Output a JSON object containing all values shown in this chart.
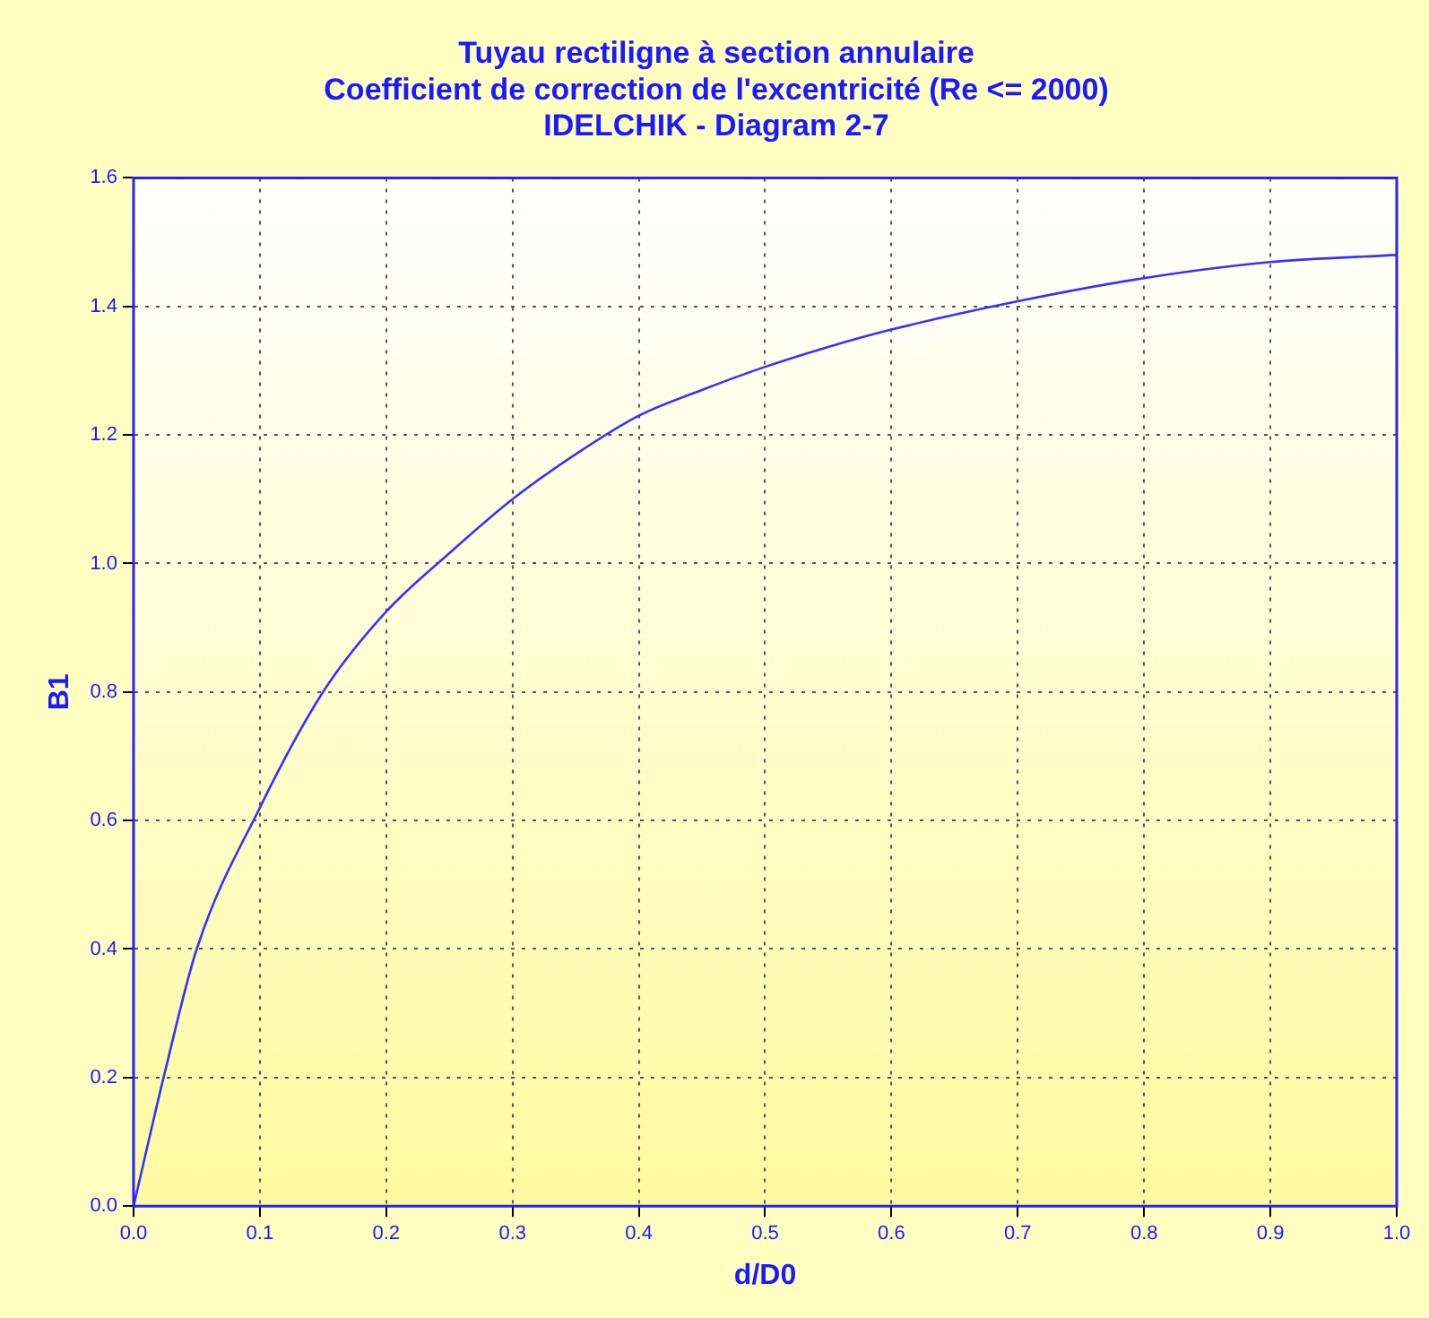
{
  "chart_data": {
    "type": "line",
    "title": "Tuyau rectiligne à section annulaire\nCoefficient de correction de l'excentricité (Re <= 2000)\nIDELCHIK - Diagram 2-7",
    "xlabel": "d/D0",
    "ylabel": "B1",
    "x": [
      0,
      0.025,
      0.05,
      0.1,
      0.15,
      0.2,
      0.25,
      0.3,
      0.35,
      0.4,
      0.45,
      0.5,
      0.55,
      0.6,
      0.7,
      0.8,
      0.9,
      1.0
    ],
    "series": [
      {
        "color": "#3333ff",
        "values": [
          0,
          0.21,
          0.4,
          0.62,
          0.8,
          0.925,
          1.016,
          1.1,
          1.17,
          1.23,
          1.27,
          1.306,
          1.337,
          1.364,
          1.408,
          1.444,
          1.469,
          1.48
        ]
      }
    ],
    "xlim": [
      0,
      1
    ],
    "xticks": [
      {
        "value": 0,
        "label": "0.0"
      },
      0.1,
      0.2,
      0.3,
      0.4,
      0.5,
      0.6,
      0.7,
      0.8,
      0.9,
      {
        "value": 1,
        "label": "1.0"
      }
    ],
    "ylim": [
      0,
      1.6
    ],
    "yticks": [
      {
        "value": 0,
        "label": "0.0"
      },
      0.2,
      0.4,
      0.6,
      0.8,
      {
        "value": 1,
        "label": "1.0"
      },
      1.2,
      1.4,
      1.6
    ],
    "grid": true,
    "legend": false,
    "marker": "none",
    "line_style": "solid"
  }
}
